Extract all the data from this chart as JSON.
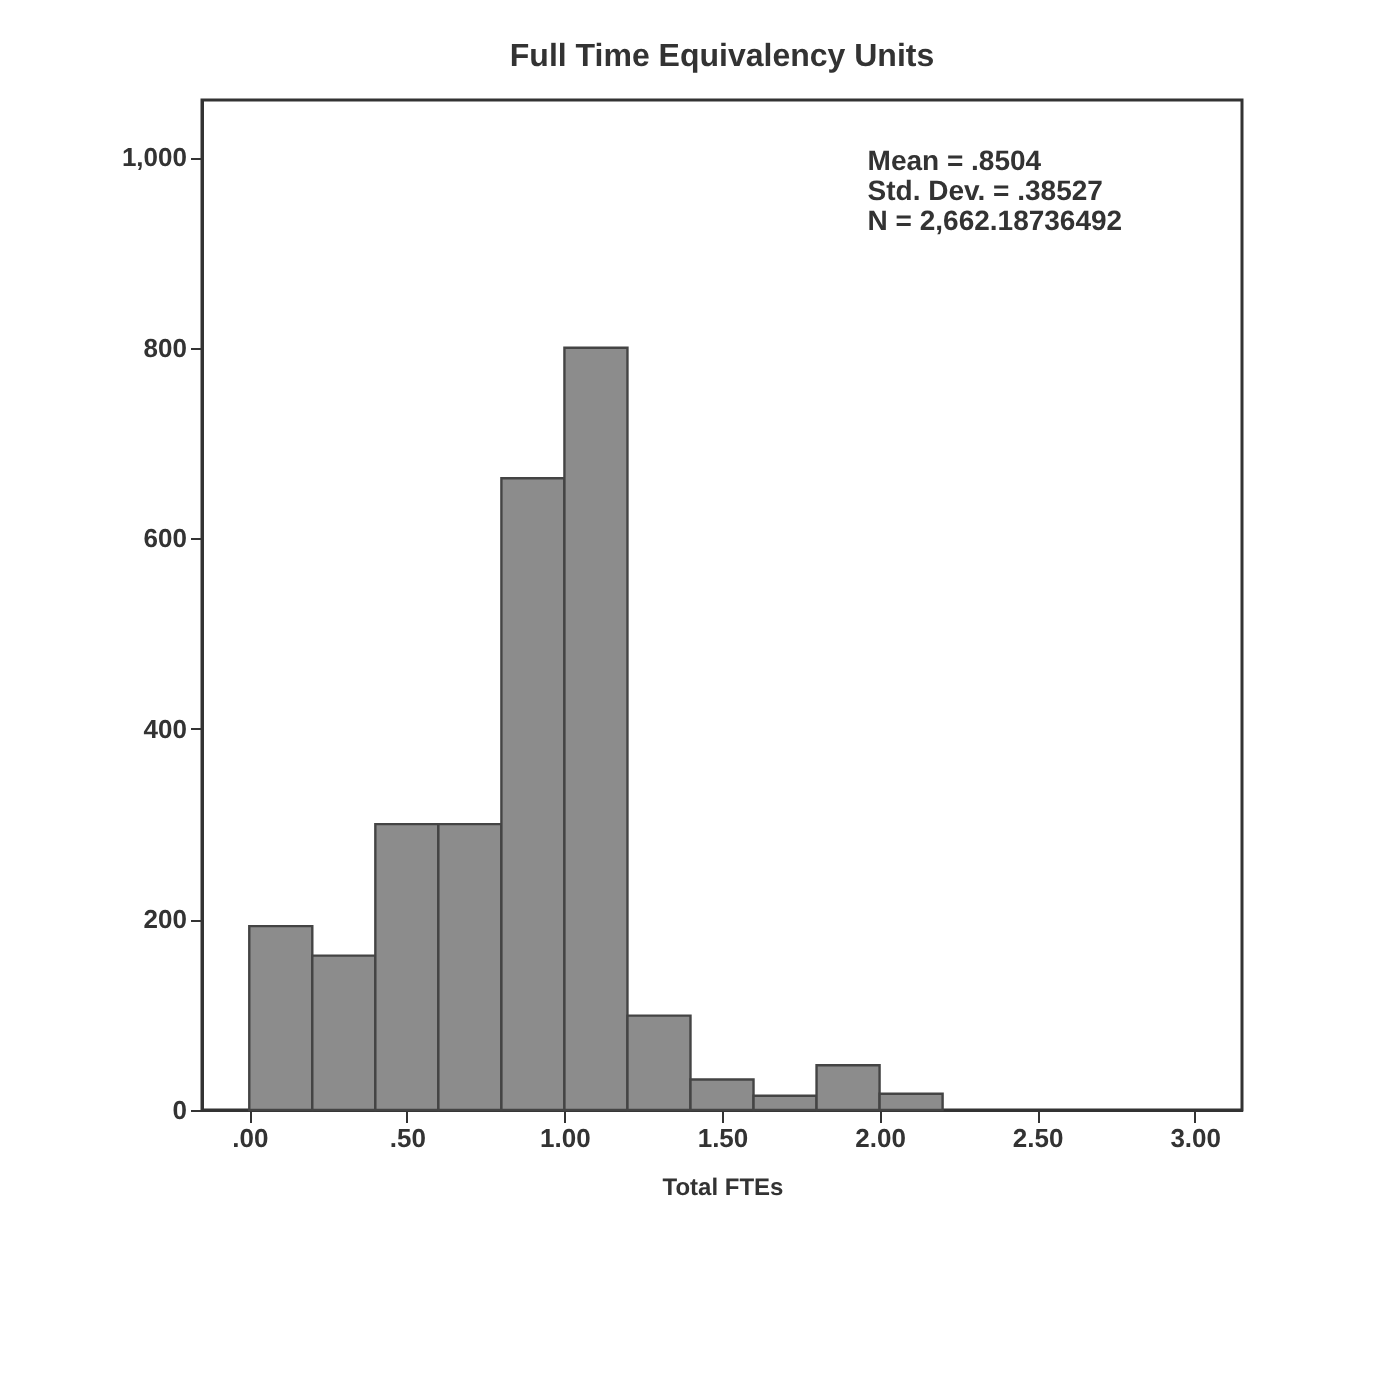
{
  "chart_data": {
    "type": "histogram",
    "title": "Full Time Equivalency Units",
    "xlabel": "Total FTEs",
    "bins": [
      0,
      0.2,
      0.4,
      0.6,
      0.8,
      1.0,
      1.2,
      1.4,
      1.6,
      1.8,
      2.0,
      2.2
    ],
    "values": [
      193,
      162,
      300,
      300,
      663,
      800,
      99,
      32,
      15,
      47,
      17
    ],
    "color": "#8c8c8c",
    "xlim": [
      -0.15,
      3.15
    ],
    "xticks": [
      {
        "value": 0,
        "label": ".00"
      },
      {
        "value": 0.5,
        "label": ".50"
      },
      {
        "value": 1,
        "label": "1.00"
      },
      {
        "value": 1.5,
        "label": "1.50"
      },
      {
        "value": 2,
        "label": "2.00"
      },
      {
        "value": 2.5,
        "label": "2.50"
      },
      {
        "value": 3,
        "label": "3.00"
      }
    ],
    "ylim": [
      0,
      1060
    ],
    "yticks": [
      0,
      200,
      400,
      600,
      800,
      {
        "value": 1000,
        "label": "1,000"
      }
    ],
    "grid": false,
    "annotations": [
      "Mean = .8504",
      "Std. Dev. = .38527",
      "N = 2,662.18736492"
    ]
  }
}
